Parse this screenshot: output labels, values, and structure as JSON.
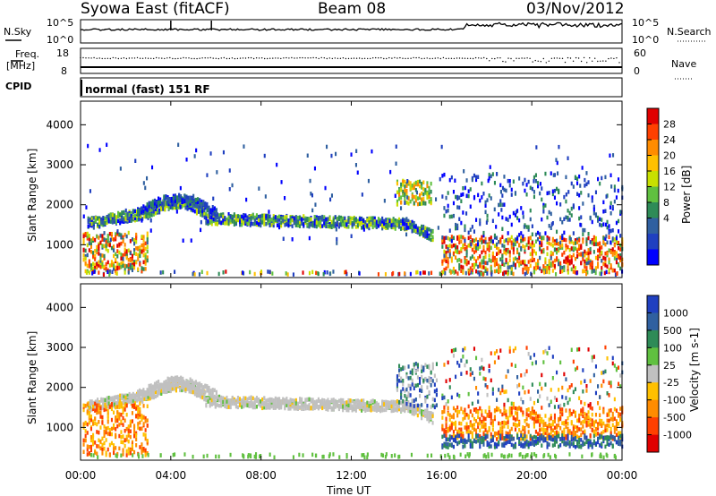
{
  "header": {
    "title": "Syowa East (fitACF)",
    "beam": "Beam 08",
    "date": "03/Nov/2012"
  },
  "panels": {
    "nsky_label": "N.Sky",
    "nsky_ticks": [
      "10^5",
      "10^0"
    ],
    "nsearch_label": "N.Search",
    "nsearch_ticks": [
      "10^5",
      "10^0"
    ],
    "freq_label_1": "Freq.",
    "freq_label_2": "[MHz]",
    "freq_ticks": [
      "18",
      "8"
    ],
    "nave_label": "Nave",
    "nave_ticks": [
      "60",
      "0"
    ],
    "cpid_label": "CPID",
    "cpid_text": "normal (fast) 151 RF"
  },
  "chart_data": [
    {
      "type": "heatmap",
      "name": "power",
      "xlabel": "Time UT",
      "ylabel": "Slant Range [km]",
      "x_ticks": [
        "00:00",
        "04:00",
        "08:00",
        "12:00",
        "16:00",
        "20:00",
        "00:00"
      ],
      "x_range_hours": [
        0,
        24
      ],
      "y_ticks": [
        1000,
        2000,
        3000,
        4000
      ],
      "ylim": [
        180,
        4590
      ],
      "colorbar": {
        "label": "Power [dB]",
        "ticks": [
          "28",
          "24",
          "20",
          "16",
          "12",
          "8",
          "4"
        ],
        "colors": [
          "#e00000",
          "#ff4000",
          "#ff8c00",
          "#ffc000",
          "#c8e000",
          "#60c040",
          "#2e8b57",
          "#3060a0",
          "#2040c0",
          "#0000ff"
        ]
      },
      "features": [
        {
          "desc": "main echo band",
          "hours": [
            3,
            14
          ],
          "range_km": [
            1450,
            1800
          ],
          "dominant": "green/blue"
        },
        {
          "desc": "early arc",
          "hours": [
            2.5,
            6
          ],
          "range_km": [
            1600,
            2300
          ]
        },
        {
          "desc": "near range",
          "hours": [
            0,
            3
          ],
          "range_km": [
            300,
            1200
          ],
          "dominant": "orange/red"
        },
        {
          "desc": "post-16UT near range",
          "hours": [
            16,
            24
          ],
          "range_km": [
            300,
            1100
          ],
          "dominant": "orange/red"
        },
        {
          "desc": "scattered",
          "hours": [
            16,
            24
          ],
          "range_km": [
            1000,
            3000
          ],
          "dominant": "blue"
        }
      ]
    },
    {
      "type": "heatmap",
      "name": "velocity",
      "xlabel": "Time UT",
      "ylabel": "Slant Range [km]",
      "x_ticks": [
        "00:00",
        "04:00",
        "08:00",
        "12:00",
        "16:00",
        "20:00",
        "00:00"
      ],
      "x_range_hours": [
        0,
        24
      ],
      "y_ticks": [
        1000,
        2000,
        3000,
        4000
      ],
      "ylim": [
        180,
        4590
      ],
      "colorbar": {
        "label": "Velocity [m s-1]",
        "ticks": [
          "1000",
          "500",
          "100",
          "25",
          "-25",
          "-100",
          "-500",
          "-1000"
        ],
        "colors": [
          "#2040c0",
          "#3060a0",
          "#2e8b57",
          "#60c040",
          "#c0c0c0",
          "#ffc000",
          "#ff8c00",
          "#ff4000",
          "#e00000"
        ]
      },
      "features": [
        {
          "desc": "main echo band",
          "hours": [
            3,
            14
          ],
          "range_km": [
            1450,
            1800
          ],
          "dominant": "grey"
        },
        {
          "desc": "early arc",
          "hours": [
            2.5,
            6
          ],
          "range_km": [
            1600,
            2300
          ],
          "dominant": "grey"
        },
        {
          "desc": "near range",
          "hours": [
            0,
            3
          ],
          "range_km": [
            300,
            1500
          ],
          "dominant": "orange"
        },
        {
          "desc": "post-16UT",
          "hours": [
            16,
            24
          ],
          "range_km": [
            700,
            1500
          ],
          "dominant": "orange"
        },
        {
          "desc": "post-16UT low band",
          "hours": [
            16,
            24
          ],
          "range_km": [
            500,
            800
          ],
          "dominant": "blue"
        }
      ]
    }
  ]
}
